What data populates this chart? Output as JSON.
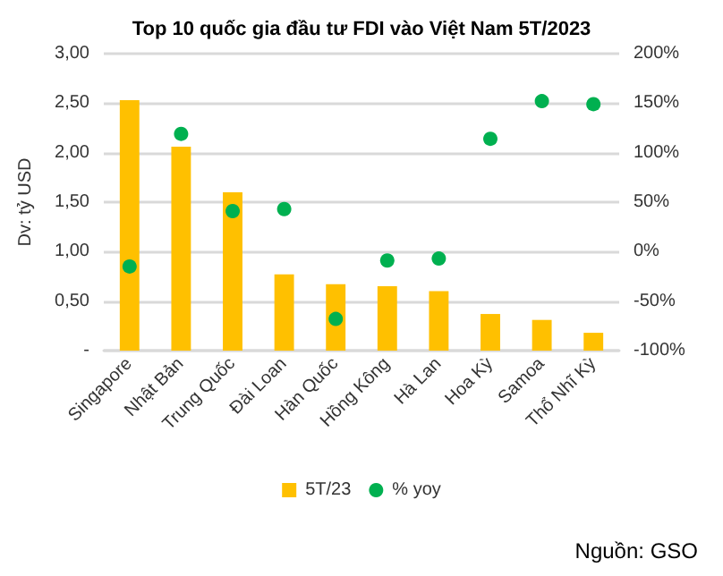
{
  "chart_data": {
    "type": "bar",
    "title": "Top 10 quốc gia đầu tư FDI vào Việt Nam 5T/2023",
    "ylabel": "Dv: tỷ USD",
    "annotations": [
      "Nguồn: GSO"
    ],
    "categories": [
      "Singapore",
      "Nhật Bản",
      "Trung Quốc",
      "Đài Loan",
      "Hàn Quốc",
      "Hồng Kông",
      "Hà Lan",
      "Hoa Kỳ",
      "Samoa",
      "Thổ Nhĩ Kỳ"
    ],
    "series": [
      {
        "name": "5T/23",
        "color": "#ffc000",
        "values": [
          2.53,
          2.06,
          1.6,
          0.77,
          0.67,
          0.65,
          0.6,
          0.37,
          0.31,
          0.18
        ]
      },
      {
        "name": "% yoy",
        "type": "scatter",
        "axis": "y2",
        "color": "#00b050",
        "marker": "circle",
        "values": [
          -15,
          119,
          41,
          43,
          -68,
          -9,
          -7,
          114,
          152,
          149
        ]
      }
    ],
    "ylim": [
      0,
      3
    ],
    "yticks": [
      {
        "value": 0,
        "label": "-"
      },
      {
        "value": 0.5,
        "label": "0,50"
      },
      {
        "value": 1,
        "label": "1,00"
      },
      {
        "value": 1.5,
        "label": "1,50"
      },
      {
        "value": 2,
        "label": "2,00"
      },
      {
        "value": 2.5,
        "label": "2,50"
      },
      {
        "value": 3,
        "label": "3,00"
      }
    ],
    "y2lim": [
      -100,
      200
    ],
    "y2ticks": [
      {
        "value": -100,
        "label": "-100%"
      },
      {
        "value": -50,
        "label": "-50%"
      },
      {
        "value": 0,
        "label": "0%"
      },
      {
        "value": 50,
        "label": "50%"
      },
      {
        "value": 100,
        "label": "100%"
      },
      {
        "value": 150,
        "label": "150%"
      },
      {
        "value": 200,
        "label": "200%"
      }
    ],
    "grid": "y",
    "legend": "bottom"
  }
}
